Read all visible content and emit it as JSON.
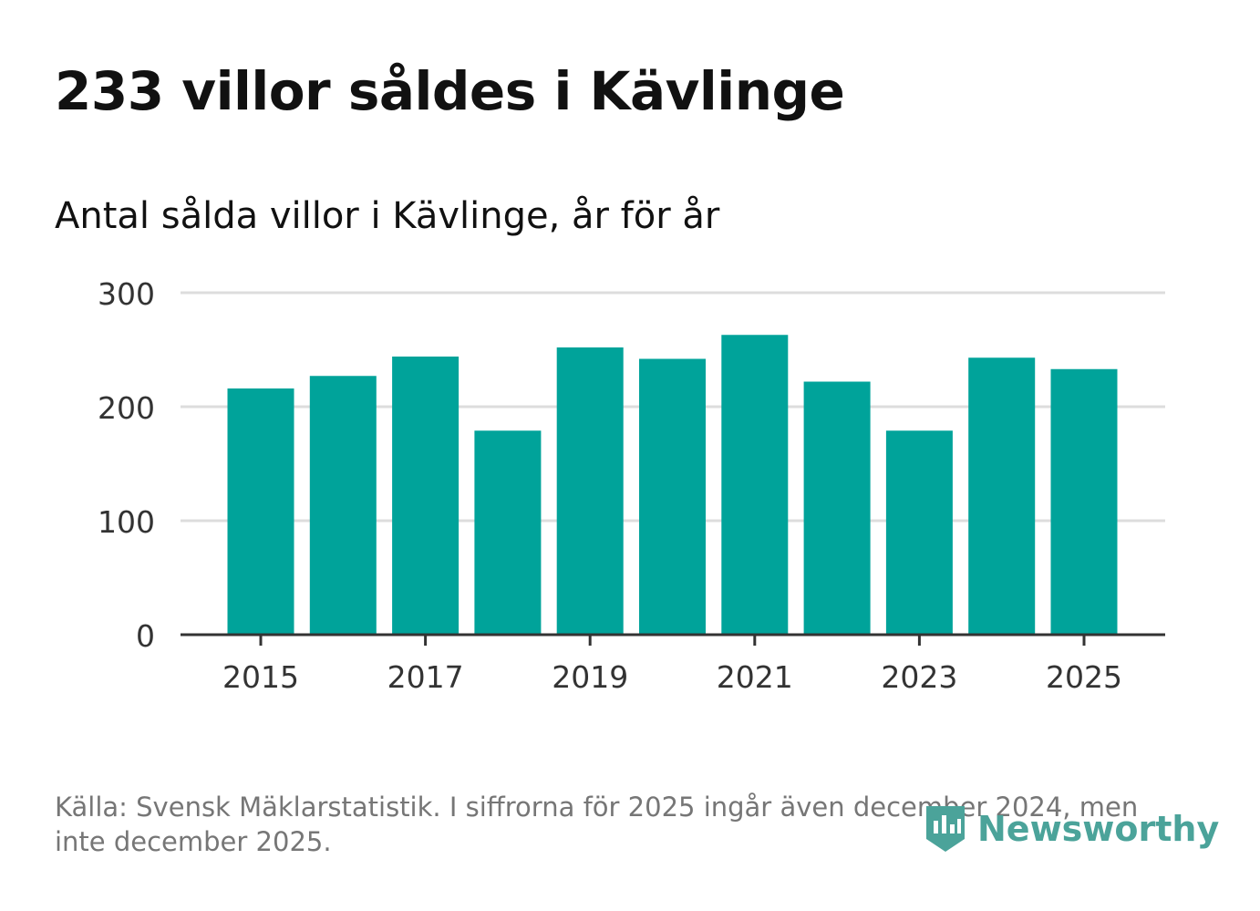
{
  "chart_data": {
    "type": "bar",
    "title": "233 villor såldes i Kävlinge",
    "subtitle": "Antal sålda villor i Kävlinge, år för år",
    "categories": [
      2015,
      2016,
      2017,
      2018,
      2019,
      2020,
      2021,
      2022,
      2023,
      2024,
      2025
    ],
    "values": [
      216,
      227,
      244,
      179,
      252,
      242,
      263,
      222,
      179,
      243,
      233
    ],
    "ylim": [
      0,
      300
    ],
    "y_ticks": [
      0,
      100,
      200,
      300
    ],
    "x_tick_labels": [
      "2015",
      "2017",
      "2019",
      "2021",
      "2023",
      "2025"
    ],
    "xlabel": "",
    "ylabel": "",
    "grid": true,
    "bar_color": "#00a39a",
    "grid_color": "#dddddd",
    "axis_color": "#333333"
  },
  "footer": {
    "source": "Källa: Svensk Mäklarstatistik. I siffrorna för 2025 ingår även december 2024, men inte december 2025."
  },
  "logo": {
    "text": "Newsworthy",
    "color": "#4ba39a",
    "icon": "newsworthy-logo-icon"
  }
}
